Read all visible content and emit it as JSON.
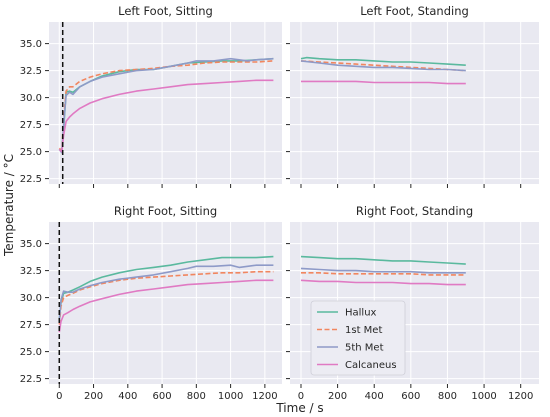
{
  "figure": {
    "ylabel": "Temperature / °C",
    "xlabel": "Time / s",
    "background": "#e9e9f1",
    "grid_color": "#ffffff"
  },
  "legend": {
    "entries": [
      {
        "label": "Hallux",
        "color": "#5ab99e",
        "dash": "solid"
      },
      {
        "label": "1st Met",
        "color": "#f1865f",
        "dash": "dashed"
      },
      {
        "label": "5th Met",
        "color": "#8e9ac8",
        "dash": "solid"
      },
      {
        "label": "Calcaneus",
        "color": "#e07ac3",
        "dash": "solid"
      }
    ]
  },
  "chart_data": [
    {
      "type": "line",
      "title": "Left Foot, Sitting",
      "xlim": [
        -60,
        1300
      ],
      "ylim": [
        22,
        37
      ],
      "xticks": [
        0,
        200,
        400,
        600,
        800,
        1000,
        1200
      ],
      "yticks": [
        22.5,
        25.0,
        27.5,
        30.0,
        32.5,
        35.0
      ],
      "ytick_labels": [
        "22.5",
        "25.0",
        "27.5",
        "30.0",
        "32.5",
        "35.0"
      ],
      "xtick_labels": [],
      "vline": 20,
      "series": [
        {
          "name": "Hallux",
          "x": [
            0,
            15,
            25,
            40,
            60,
            80,
            120,
            180,
            250,
            350,
            450,
            550,
            650,
            750,
            850,
            950,
            1050,
            1150,
            1250
          ],
          "y": [
            25.2,
            25.0,
            27.0,
            30.5,
            30.6,
            30.5,
            31.0,
            31.5,
            32.0,
            32.4,
            32.6,
            32.6,
            32.9,
            33.2,
            33.3,
            33.4,
            33.4,
            33.5,
            33.6
          ]
        },
        {
          "name": "1st Met",
          "x": [
            0,
            15,
            25,
            40,
            60,
            80,
            120,
            180,
            250,
            350,
            450,
            550,
            650,
            750,
            850,
            950,
            1050,
            1150,
            1250
          ],
          "y": [
            25.3,
            25.1,
            28.0,
            30.6,
            31.0,
            31.0,
            31.5,
            31.9,
            32.2,
            32.5,
            32.6,
            32.7,
            32.9,
            33.0,
            33.2,
            33.3,
            33.3,
            33.3,
            33.4
          ]
        },
        {
          "name": "5th Met",
          "x": [
            0,
            15,
            25,
            40,
            60,
            80,
            120,
            180,
            250,
            350,
            450,
            550,
            650,
            750,
            800,
            900,
            1000,
            1100,
            1150,
            1250
          ],
          "y": [
            25.2,
            24.9,
            27.5,
            30.2,
            30.5,
            30.3,
            31.0,
            31.5,
            31.9,
            32.2,
            32.5,
            32.6,
            32.9,
            33.2,
            33.4,
            33.4,
            33.6,
            33.4,
            33.5,
            33.6
          ]
        },
        {
          "name": "Calcaneus",
          "x": [
            0,
            15,
            25,
            40,
            60,
            80,
            120,
            180,
            250,
            350,
            450,
            550,
            650,
            750,
            850,
            950,
            1050,
            1150,
            1250
          ],
          "y": [
            25.2,
            25.0,
            26.5,
            27.8,
            28.2,
            28.5,
            29.0,
            29.5,
            29.9,
            30.3,
            30.6,
            30.8,
            31.0,
            31.2,
            31.3,
            31.4,
            31.5,
            31.6,
            31.6
          ]
        }
      ]
    },
    {
      "type": "line",
      "title": "Left Foot, Standing",
      "xlim": [
        -60,
        1300
      ],
      "ylim": [
        22,
        37
      ],
      "xticks": [
        0,
        200,
        400,
        600,
        800,
        1000,
        1200
      ],
      "yticks": [
        22.5,
        25.0,
        27.5,
        30.0,
        32.5,
        35.0
      ],
      "ytick_labels": [],
      "xtick_labels": [],
      "series": [
        {
          "name": "Hallux",
          "x": [
            0,
            30,
            100,
            200,
            300,
            400,
            500,
            600,
            700,
            800,
            900
          ],
          "y": [
            33.6,
            33.7,
            33.6,
            33.5,
            33.5,
            33.4,
            33.3,
            33.3,
            33.2,
            33.1,
            33.0
          ]
        },
        {
          "name": "1st Met",
          "x": [
            0,
            100,
            200,
            300,
            400,
            500,
            600,
            700,
            800,
            900
          ],
          "y": [
            33.4,
            33.3,
            33.2,
            33.1,
            33.0,
            32.9,
            32.8,
            32.7,
            32.6,
            32.5
          ]
        },
        {
          "name": "5th Met",
          "x": [
            0,
            100,
            200,
            300,
            400,
            500,
            600,
            700,
            800,
            900
          ],
          "y": [
            33.4,
            33.2,
            33.0,
            32.9,
            32.8,
            32.8,
            32.7,
            32.6,
            32.6,
            32.5
          ]
        },
        {
          "name": "Calcaneus",
          "x": [
            0,
            100,
            200,
            300,
            400,
            500,
            600,
            700,
            800,
            900
          ],
          "y": [
            31.5,
            31.5,
            31.5,
            31.5,
            31.4,
            31.4,
            31.4,
            31.4,
            31.3,
            31.3
          ]
        }
      ]
    },
    {
      "type": "line",
      "title": "Right Foot, Sitting",
      "xlim": [
        -60,
        1300
      ],
      "ylim": [
        22,
        37
      ],
      "xticks": [
        0,
        200,
        400,
        600,
        800,
        1000,
        1200
      ],
      "yticks": [
        22.5,
        25.0,
        27.5,
        30.0,
        32.5,
        35.0
      ],
      "ytick_labels": [
        "22.5",
        "25.0",
        "27.5",
        "30.0",
        "32.5",
        "35.0"
      ],
      "xtick_labels": [
        "0",
        "200",
        "400",
        "600",
        "800",
        "1000",
        "1200"
      ],
      "vline": 0,
      "series": [
        {
          "name": "Hallux",
          "x": [
            0,
            10,
            25,
            50,
            80,
            120,
            180,
            250,
            350,
            450,
            550,
            650,
            750,
            850,
            950,
            1050,
            1150,
            1250
          ],
          "y": [
            28.0,
            29.5,
            30.4,
            30.5,
            30.7,
            31.0,
            31.5,
            31.9,
            32.3,
            32.6,
            32.8,
            33.0,
            33.3,
            33.5,
            33.7,
            33.7,
            33.7,
            33.8
          ]
        },
        {
          "name": "1st Met",
          "x": [
            0,
            10,
            25,
            50,
            80,
            120,
            180,
            250,
            350,
            450,
            550,
            650,
            750,
            850,
            950,
            1050,
            1150,
            1250
          ],
          "y": [
            27.5,
            29.2,
            30.0,
            30.2,
            30.4,
            30.7,
            31.0,
            31.3,
            31.6,
            31.8,
            31.9,
            32.0,
            32.1,
            32.2,
            32.3,
            32.3,
            32.4,
            32.4
          ]
        },
        {
          "name": "5th Met",
          "x": [
            0,
            10,
            25,
            50,
            80,
            120,
            180,
            250,
            350,
            450,
            550,
            650,
            750,
            800,
            900,
            1000,
            1050,
            1100,
            1150,
            1250
          ],
          "y": [
            27.8,
            29.8,
            30.6,
            30.5,
            30.5,
            30.8,
            31.1,
            31.4,
            31.7,
            31.9,
            32.1,
            32.4,
            32.7,
            32.9,
            32.9,
            33.0,
            32.8,
            32.9,
            33.0,
            33.0
          ]
        },
        {
          "name": "Calcaneus",
          "x": [
            0,
            10,
            25,
            50,
            80,
            120,
            180,
            250,
            350,
            450,
            550,
            650,
            750,
            850,
            950,
            1050,
            1150,
            1250
          ],
          "y": [
            26.8,
            27.8,
            28.4,
            28.6,
            28.9,
            29.2,
            29.6,
            29.9,
            30.3,
            30.6,
            30.8,
            31.0,
            31.2,
            31.3,
            31.4,
            31.5,
            31.6,
            31.6
          ]
        }
      ]
    },
    {
      "type": "line",
      "title": "Right Foot, Standing",
      "xlim": [
        -60,
        1300
      ],
      "ylim": [
        22,
        37
      ],
      "xticks": [
        0,
        200,
        400,
        600,
        800,
        1000,
        1200
      ],
      "yticks": [
        22.5,
        25.0,
        27.5,
        30.0,
        32.5,
        35.0
      ],
      "ytick_labels": [],
      "xtick_labels": [
        "0",
        "200",
        "400",
        "600",
        "800",
        "1000",
        "1200"
      ],
      "series": [
        {
          "name": "Hallux",
          "x": [
            0,
            100,
            200,
            300,
            400,
            500,
            600,
            700,
            800,
            900
          ],
          "y": [
            33.8,
            33.7,
            33.6,
            33.6,
            33.5,
            33.4,
            33.4,
            33.3,
            33.2,
            33.1
          ]
        },
        {
          "name": "1st Met",
          "x": [
            0,
            100,
            200,
            300,
            400,
            500,
            600,
            700,
            800,
            900
          ],
          "y": [
            32.3,
            32.3,
            32.2,
            32.2,
            32.2,
            32.2,
            32.2,
            32.1,
            32.1,
            32.1
          ]
        },
        {
          "name": "5th Met",
          "x": [
            0,
            100,
            200,
            300,
            400,
            500,
            600,
            700,
            800,
            900
          ],
          "y": [
            32.7,
            32.6,
            32.5,
            32.5,
            32.4,
            32.4,
            32.4,
            32.3,
            32.3,
            32.3
          ]
        },
        {
          "name": "Calcaneus",
          "x": [
            0,
            100,
            200,
            300,
            400,
            500,
            600,
            700,
            800,
            900
          ],
          "y": [
            31.6,
            31.5,
            31.5,
            31.4,
            31.4,
            31.4,
            31.3,
            31.3,
            31.2,
            31.2
          ]
        }
      ]
    }
  ]
}
